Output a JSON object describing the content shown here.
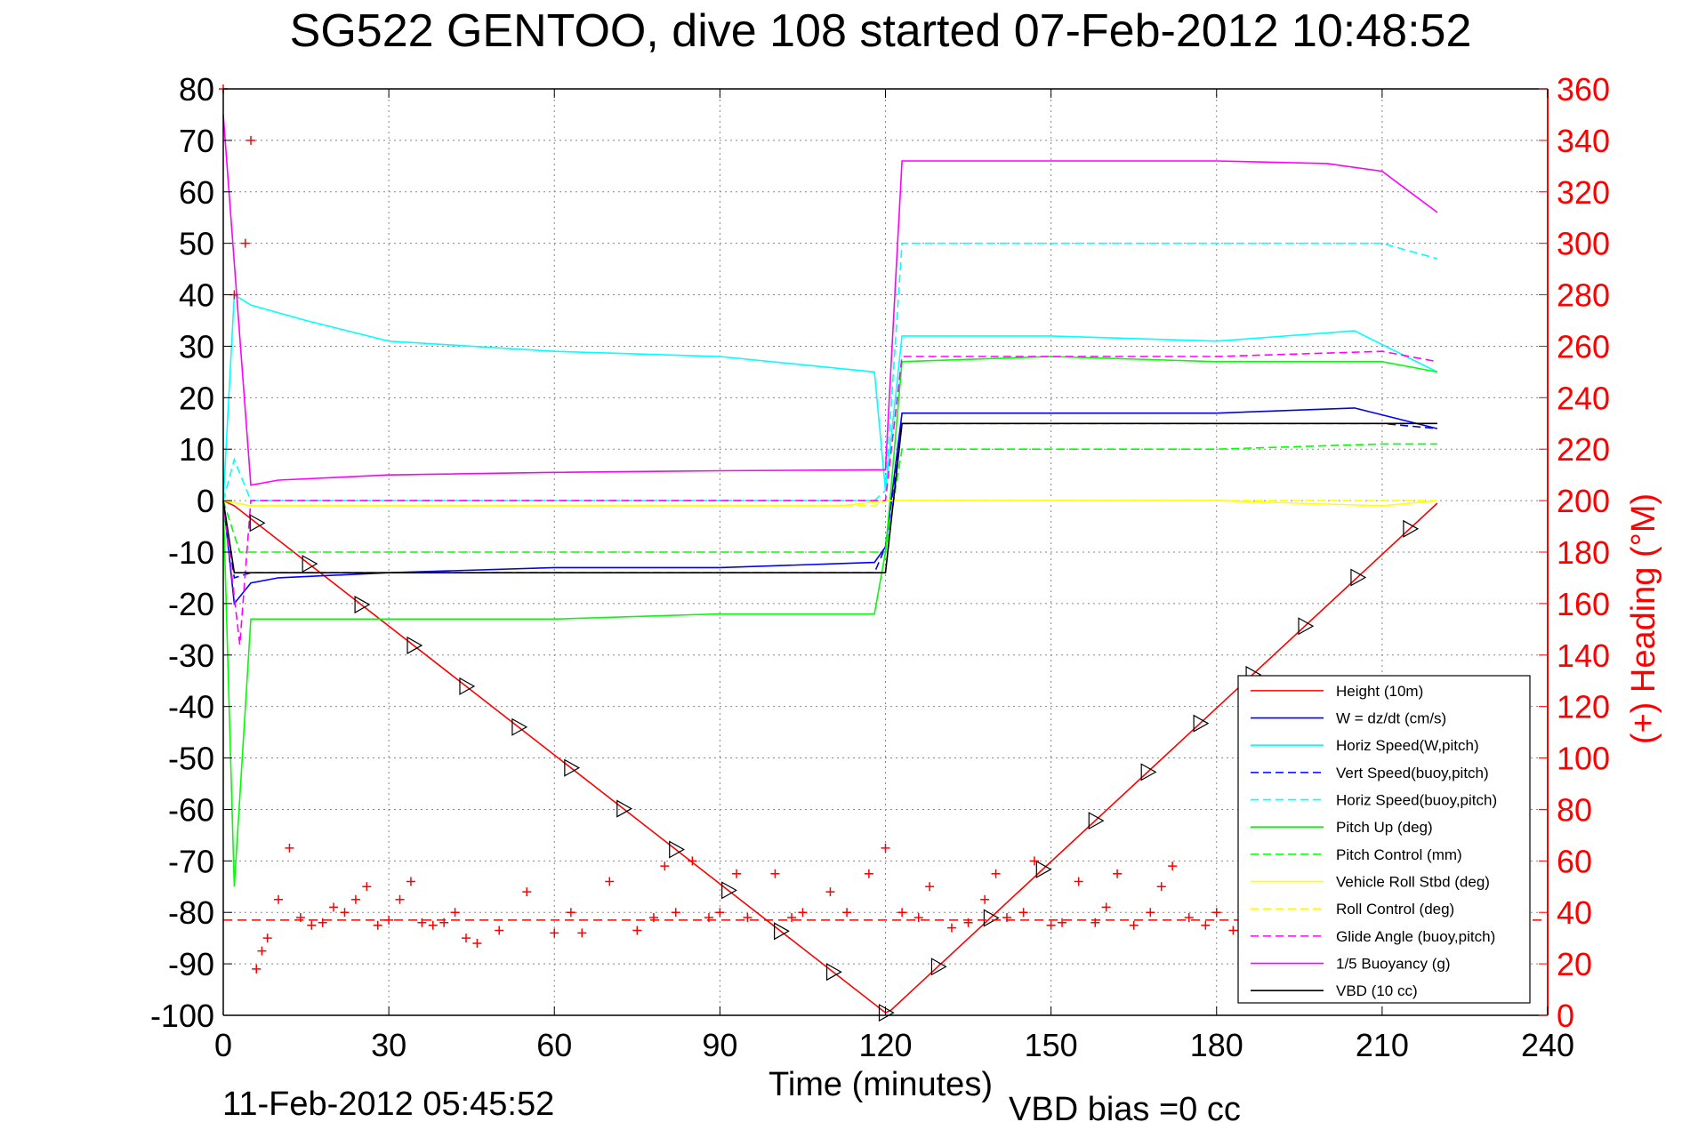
{
  "chart_data": {
    "type": "line",
    "title": "SG522 GENTOO, dive 108 started 07-Feb-2012 10:48:52",
    "xlabel": "Time (minutes)",
    "ylabel_right": "(+) Heading (°M)",
    "xlim": [
      0,
      240
    ],
    "ylim_left": [
      -100,
      80
    ],
    "ylim_right": [
      0,
      360
    ],
    "x_ticks": [
      "0",
      "30",
      "60",
      "90",
      "120",
      "150",
      "180",
      "210",
      "240"
    ],
    "y_ticks_left": [
      "80",
      "70",
      "60",
      "50",
      "40",
      "30",
      "20",
      "10",
      "0",
      "-10",
      "-20",
      "-30",
      "-40",
      "-50",
      "-60",
      "-70",
      "-80",
      "-90",
      "-100"
    ],
    "y_ticks_right": [
      "360",
      "340",
      "320",
      "300",
      "280",
      "260",
      "240",
      "220",
      "200",
      "180",
      "160",
      "140",
      "120",
      "100",
      "80",
      "60",
      "40",
      "20",
      "0"
    ],
    "grid": true,
    "legend_position": "bottom-right",
    "footer_date": "11-Feb-2012 05:45:52",
    "footer_bias": "VBD bias =0 cc",
    "series": [
      {
        "name": "Height (10m)",
        "color": "#ff0000",
        "style": "solid",
        "x": [
          0,
          2,
          120,
          121,
          220
        ],
        "y": [
          0,
          -1,
          -99.5,
          -99,
          -0.5
        ]
      },
      {
        "name": "W = dz/dt (cm/s)",
        "color": "#0000ff",
        "style": "solid",
        "x": [
          0,
          2,
          5,
          10,
          30,
          60,
          90,
          118,
          120,
          123,
          130,
          150,
          180,
          205,
          220
        ],
        "y": [
          0,
          -20,
          -16,
          -15,
          -14,
          -13,
          -13,
          -12,
          -9,
          17,
          17,
          17,
          17,
          18,
          14
        ]
      },
      {
        "name": "Horiz Speed(W,pitch)",
        "color": "#00ffff",
        "style": "solid",
        "x": [
          0,
          2,
          5,
          15,
          30,
          60,
          90,
          118,
          120,
          123,
          130,
          150,
          180,
          205,
          220
        ],
        "y": [
          0,
          40,
          38,
          35,
          31,
          29,
          28,
          25,
          2,
          32,
          32,
          32,
          31,
          33,
          25
        ]
      },
      {
        "name": "Vert Speed(buoy,pitch)",
        "color": "#0000ff",
        "style": "dashed",
        "x": [
          0,
          2,
          5,
          30,
          60,
          118,
          120,
          123,
          150,
          180,
          210,
          220
        ],
        "y": [
          0,
          -15,
          -14,
          -14,
          -14,
          -14,
          -9,
          15,
          15,
          15,
          15,
          14
        ]
      },
      {
        "name": "Horiz Speed(buoy,pitch)",
        "color": "#00ffff",
        "style": "dashed",
        "x": [
          0,
          2,
          5,
          118,
          120,
          123,
          150,
          180,
          210,
          220
        ],
        "y": [
          0,
          8,
          0,
          0,
          2,
          50,
          50,
          50,
          50,
          47
        ]
      },
      {
        "name": "Pitch Up (deg)",
        "color": "#00ff00",
        "style": "solid",
        "x": [
          0,
          2,
          5,
          30,
          60,
          90,
          118,
          120,
          123,
          150,
          180,
          210,
          220
        ],
        "y": [
          0,
          -75,
          -23,
          -23,
          -23,
          -22,
          -22,
          -10,
          27,
          28,
          27,
          27,
          25
        ]
      },
      {
        "name": "Pitch Control (mm)",
        "color": "#00ff00",
        "style": "dashed",
        "x": [
          0,
          3,
          5,
          118,
          120,
          123,
          150,
          180,
          210,
          220
        ],
        "y": [
          0,
          -10,
          -10,
          -10,
          -10,
          10,
          10,
          10,
          11,
          11
        ]
      },
      {
        "name": "Vehicle Roll Stbd (deg)",
        "color": "#ffff00",
        "style": "solid",
        "x": [
          0,
          5,
          13,
          24,
          34,
          43,
          56,
          66,
          75,
          85,
          94,
          112,
          120,
          125,
          150,
          180,
          210,
          220
        ],
        "y": [
          0,
          -1,
          -1,
          -1,
          -1,
          -1,
          -1,
          -1,
          -1,
          -1,
          -1,
          -1,
          0,
          0,
          0,
          0,
          -1,
          0
        ]
      },
      {
        "name": "Roll Control (deg)",
        "color": "#ffff00",
        "style": "dashed",
        "x": [
          0,
          5,
          60,
          118,
          120,
          123,
          150,
          180,
          210,
          220
        ],
        "y": [
          0,
          -1,
          -1,
          -1,
          0,
          0,
          0,
          0,
          0,
          0
        ]
      },
      {
        "name": "Glide Angle (buoy,pitch)",
        "color": "#ff00ff",
        "style": "dashed",
        "x": [
          0,
          3,
          5,
          60,
          118,
          120,
          123,
          150,
          180,
          210,
          220
        ],
        "y": [
          0,
          -28,
          0,
          0,
          0,
          0,
          28,
          28,
          28,
          29,
          27
        ]
      },
      {
        "name": "1/5 Buoyancy (g)",
        "color": "#ff00ff",
        "style": "solid",
        "x": [
          0,
          5,
          10,
          30,
          60,
          90,
          118,
          120,
          123,
          130,
          150,
          180,
          200,
          210,
          215,
          220
        ],
        "y": [
          75,
          3,
          4,
          5,
          5.5,
          5.8,
          6,
          6,
          66,
          66,
          66,
          66,
          65.5,
          64,
          60,
          56
        ]
      },
      {
        "name": "VBD (10 cc)",
        "color": "#000000",
        "style": "solid",
        "x": [
          0,
          2,
          118,
          120,
          123,
          150,
          180,
          210,
          220
        ],
        "y": [
          0,
          -14,
          -14,
          -14,
          15,
          15,
          15,
          15,
          15
        ]
      }
    ],
    "heading_series": {
      "color": "#ff0000",
      "marker": "+",
      "axis": "right",
      "x": [
        0,
        2,
        4,
        5,
        6,
        7,
        8,
        10,
        12,
        14,
        16,
        18,
        20,
        22,
        24,
        26,
        28,
        30,
        32,
        34,
        36,
        38,
        40,
        42,
        44,
        46,
        50,
        55,
        60,
        63,
        65,
        70,
        75,
        78,
        80,
        82,
        85,
        88,
        90,
        93,
        95,
        100,
        103,
        105,
        110,
        113,
        117,
        120,
        123,
        126,
        128,
        132,
        135,
        138,
        140,
        142,
        145,
        147,
        150,
        152,
        155,
        158,
        160,
        162,
        165,
        168,
        170,
        172,
        175,
        178,
        180,
        183,
        185,
        188,
        190,
        193,
        195,
        198,
        200
      ],
      "y": [
        360,
        280,
        300,
        340,
        18,
        25,
        30,
        45,
        65,
        38,
        35,
        36,
        42,
        40,
        45,
        50,
        35,
        37,
        45,
        52,
        36,
        35,
        36,
        40,
        30,
        28,
        33,
        48,
        32,
        40,
        32,
        52,
        33,
        38,
        58,
        40,
        60,
        38,
        40,
        55,
        38,
        55,
        38,
        40,
        48,
        40,
        55,
        65,
        40,
        38,
        50,
        34,
        36,
        45,
        55,
        38,
        40,
        60,
        35,
        36,
        52,
        36,
        42,
        55,
        35,
        40,
        50,
        58,
        38,
        35,
        40,
        33,
        38,
        37,
        34,
        30,
        32,
        36,
        30
      ],
      "ref_line": 37
    }
  }
}
